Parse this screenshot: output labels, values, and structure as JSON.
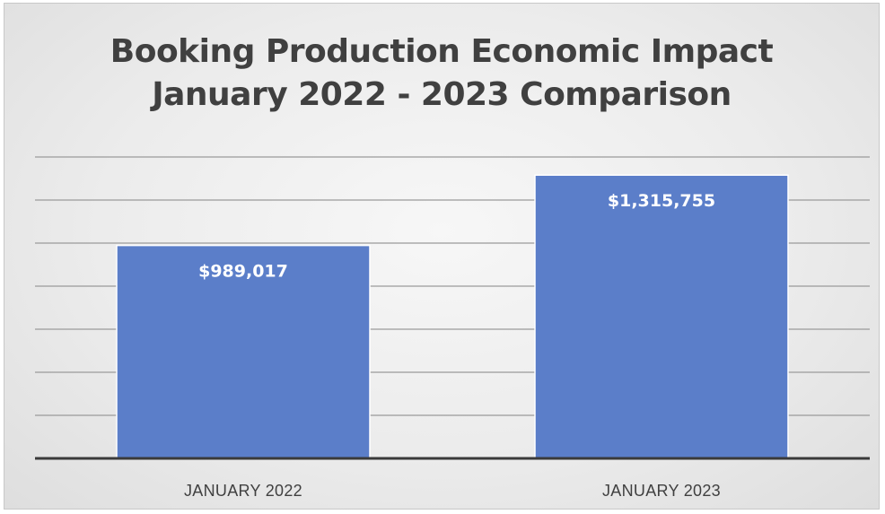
{
  "chart_data": {
    "type": "bar",
    "title_lines": [
      "Booking Production Economic Impact",
      "January 2022 - 2023 Comparison"
    ],
    "categories": [
      "JANUARY 2022",
      "JANUARY 2023"
    ],
    "values": [
      989017,
      1315755
    ],
    "data_labels": [
      "$989,017",
      "$1,315,755"
    ],
    "ylim": [
      0,
      1400000
    ],
    "ytick_step": 200000,
    "grid": true,
    "legend": "none",
    "colors": {
      "bar": "#5b7ec9",
      "bar_border": "#ffffff",
      "gridline": "#9a9a9a",
      "axis": "#3a3a3a",
      "title": "#404040",
      "category_label": "#404040",
      "data_label": "#ffffff"
    }
  }
}
